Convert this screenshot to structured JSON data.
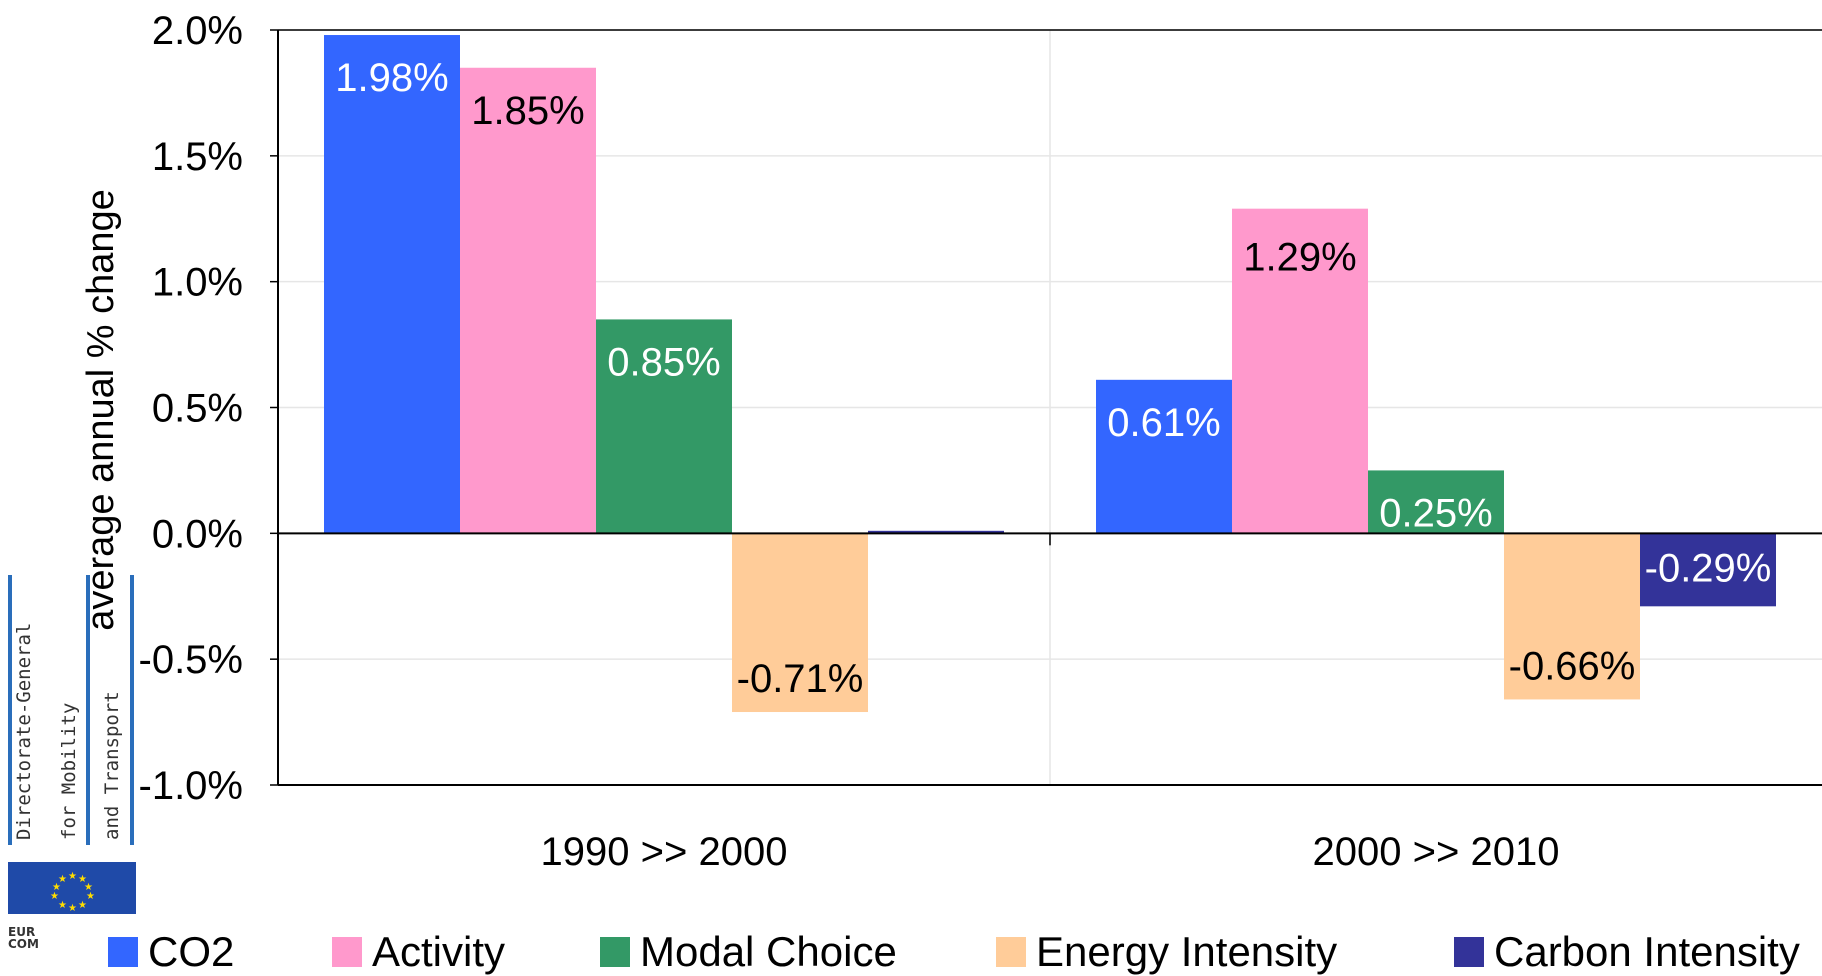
{
  "chart_data": {
    "type": "bar",
    "title": "",
    "xlabel": "",
    "ylabel": "average annual % change",
    "ylim": [
      -1.0,
      2.0
    ],
    "yticks": [
      "2.0%",
      "1.5%",
      "1.0%",
      "0.5%",
      "0.0%",
      "-0.5%",
      "-1.0%"
    ],
    "ytick_values": [
      2.0,
      1.5,
      1.0,
      0.5,
      0.0,
      -0.5,
      -1.0
    ],
    "categories": [
      "1990 >> 2000",
      "2000 >> 2010"
    ],
    "series": [
      {
        "name": "CO2",
        "color": "#3366ff",
        "values": [
          1.98,
          0.61
        ],
        "labels": [
          "1.98%",
          "0.61%"
        ],
        "label_color": "#ffffff"
      },
      {
        "name": "Activity",
        "color": "#ff99cc",
        "values": [
          1.85,
          1.29
        ],
        "labels": [
          "1.85%",
          "1.29%"
        ],
        "label_color": "#000000"
      },
      {
        "name": "Modal Choice",
        "color": "#339966",
        "values": [
          0.85,
          0.25
        ],
        "labels": [
          "0.85%",
          "0.25%"
        ],
        "label_color": "#ffffff"
      },
      {
        "name": "Energy Intensity",
        "color": "#ffcc99",
        "values": [
          -0.71,
          -0.66
        ],
        "labels": [
          "-0.71%",
          "-0.66%"
        ],
        "label_color": "#000000"
      },
      {
        "name": "Carbon Intensity",
        "color": "#333399",
        "values": [
          0.01,
          -0.29
        ],
        "labels": [
          "",
          "-0.29%"
        ],
        "label_color": "#ffffff"
      }
    ],
    "legend_position": "bottom",
    "grid": true
  },
  "logo": {
    "line1": "Directorate-General",
    "line2": "for Mobility",
    "line3": "and Transport",
    "badge_text_1": "EUR",
    "badge_text_2": "COM"
  }
}
